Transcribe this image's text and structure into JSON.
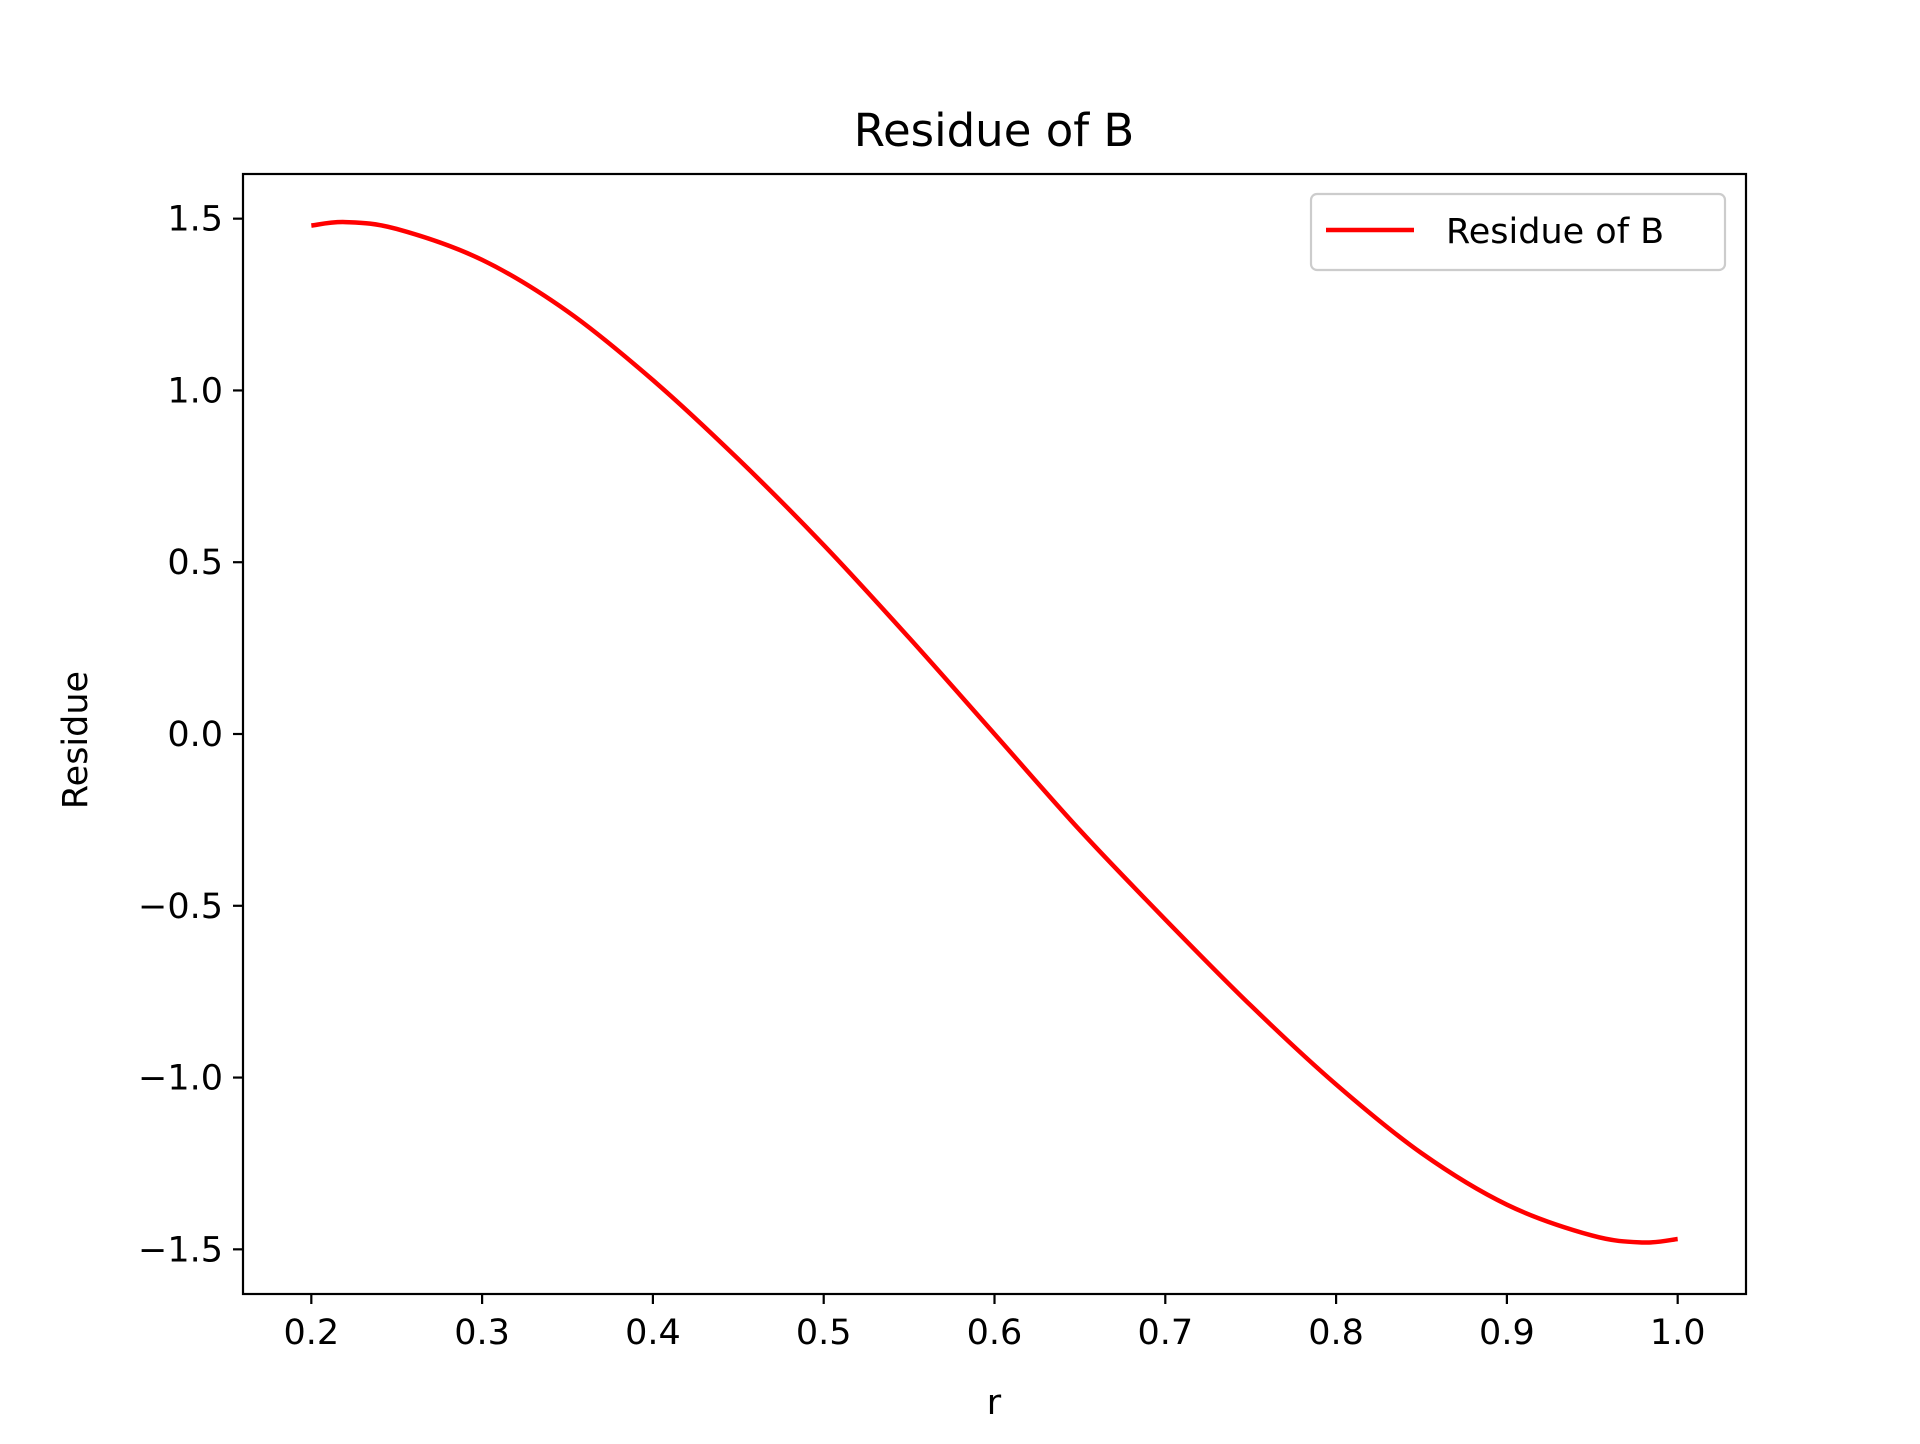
{
  "chart_data": {
    "type": "line",
    "title": "Residue of B",
    "xlabel": "r",
    "ylabel": "Residue",
    "xlim": [
      0.16,
      1.04
    ],
    "ylim": [
      -1.63,
      1.63
    ],
    "xticks": [
      0.2,
      0.3,
      0.4,
      0.5,
      0.6,
      0.7,
      0.8,
      0.9,
      1.0
    ],
    "xtick_labels": [
      "0.2",
      "0.3",
      "0.4",
      "0.5",
      "0.6",
      "0.7",
      "0.8",
      "0.9",
      "1.0"
    ],
    "yticks": [
      1.5,
      1.0,
      0.5,
      0.0,
      -0.5,
      -1.0,
      -1.5
    ],
    "ytick_labels": [
      "1.5",
      "1.0",
      "0.5",
      "0.0",
      "−0.5",
      "−1.0",
      "−1.5"
    ],
    "grid": false,
    "legend": "top-right",
    "series": [
      {
        "name": "Residue of B",
        "color": "#ff0000",
        "x": [
          0.2,
          0.22,
          0.25,
          0.3,
          0.35,
          0.4,
          0.45,
          0.5,
          0.55,
          0.6,
          0.65,
          0.7,
          0.75,
          0.8,
          0.85,
          0.9,
          0.95,
          0.98,
          1.0
        ],
        "y": [
          1.48,
          1.49,
          1.47,
          1.38,
          1.23,
          1.03,
          0.8,
          0.55,
          0.28,
          0.0,
          -0.28,
          -0.54,
          -0.79,
          -1.02,
          -1.22,
          -1.37,
          -1.46,
          -1.48,
          -1.47
        ]
      }
    ]
  }
}
